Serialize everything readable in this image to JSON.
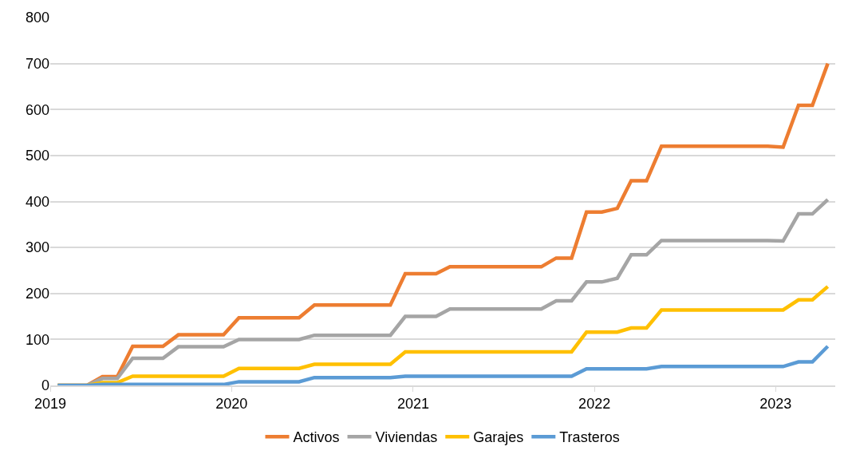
{
  "chart_data": {
    "type": "line",
    "x": [
      "2019-01-16",
      "2019-02-16",
      "2019-03-16",
      "2019-04-16",
      "2019-05-16",
      "2019-06-16",
      "2019-07-16",
      "2019-08-16",
      "2019-09-16",
      "2019-10-16",
      "2019-11-16",
      "2019-12-16",
      "2020-01-16",
      "2020-02-16",
      "2020-03-16",
      "2020-04-16",
      "2020-05-16",
      "2020-06-16",
      "2020-07-16",
      "2020-08-16",
      "2020-09-16",
      "2020-10-16",
      "2020-11-16",
      "2020-12-16",
      "2021-01-16",
      "2021-02-16",
      "2021-03-16",
      "2021-04-16",
      "2021-05-16",
      "2021-06-16",
      "2021-07-16",
      "2021-08-16",
      "2021-09-16",
      "2021-10-16",
      "2021-11-16",
      "2021-12-16",
      "2022-01-16",
      "2022-02-16",
      "2022-03-16",
      "2022-04-16",
      "2022-05-16",
      "2022-06-16",
      "2022-07-16",
      "2022-08-16",
      "2022-09-16",
      "2022-10-16",
      "2022-11-16",
      "2022-12-16",
      "2023-01-16",
      "2023-02-16",
      "2023-03-16",
      "2023-04-16"
    ],
    "series": [
      {
        "name": "Activos",
        "color": "#ed7d31",
        "values": [
          0,
          0,
          0,
          19,
          19,
          85,
          85,
          85,
          110,
          110,
          110,
          110,
          147,
          147,
          147,
          147,
          147,
          175,
          175,
          175,
          175,
          175,
          175,
          243,
          243,
          243,
          258,
          258,
          258,
          258,
          258,
          258,
          258,
          277,
          277,
          377,
          377,
          385,
          445,
          445,
          520,
          520,
          520,
          520,
          520,
          520,
          520,
          520,
          518,
          609,
          609,
          700
        ]
      },
      {
        "name": "Viviendas",
        "color": "#a5a5a5",
        "values": [
          0,
          0,
          0,
          15,
          15,
          59,
          59,
          59,
          84,
          84,
          84,
          84,
          100,
          100,
          100,
          100,
          100,
          109,
          109,
          109,
          109,
          109,
          109,
          150,
          150,
          150,
          166,
          166,
          166,
          166,
          166,
          166,
          166,
          184,
          184,
          225,
          225,
          233,
          284,
          284,
          315,
          315,
          315,
          315,
          315,
          315,
          315,
          315,
          314,
          373,
          373,
          404
        ]
      },
      {
        "name": "Garajes",
        "color": "#ffc000",
        "values": [
          0,
          0,
          0,
          6,
          6,
          20,
          20,
          20,
          20,
          20,
          20,
          20,
          37,
          37,
          37,
          37,
          37,
          46,
          46,
          46,
          46,
          46,
          46,
          73,
          73,
          73,
          73,
          73,
          73,
          73,
          73,
          73,
          73,
          73,
          73,
          116,
          116,
          116,
          125,
          125,
          164,
          164,
          164,
          164,
          164,
          164,
          164,
          164,
          164,
          186,
          186,
          215
        ]
      },
      {
        "name": "Trasteros",
        "color": "#5b9bd5",
        "values": [
          0,
          0,
          0,
          2,
          2,
          2,
          2,
          2,
          2,
          2,
          2,
          2,
          8,
          8,
          8,
          8,
          8,
          17,
          17,
          17,
          17,
          17,
          17,
          20,
          20,
          20,
          20,
          20,
          20,
          20,
          20,
          20,
          20,
          20,
          20,
          36,
          36,
          36,
          36,
          36,
          41,
          41,
          41,
          41,
          41,
          41,
          41,
          41,
          41,
          51,
          51,
          85
        ]
      }
    ],
    "xlim": [
      "2019",
      "2023-05"
    ],
    "xticks": [
      "2019",
      "2020",
      "2021",
      "2022",
      "2023"
    ],
    "ylim": [
      0,
      800
    ],
    "yticks": [
      0,
      100,
      200,
      300,
      400,
      500,
      600,
      700,
      800
    ],
    "grid": "y",
    "legend": "bottom",
    "marker": "none",
    "line_style": "solid"
  }
}
